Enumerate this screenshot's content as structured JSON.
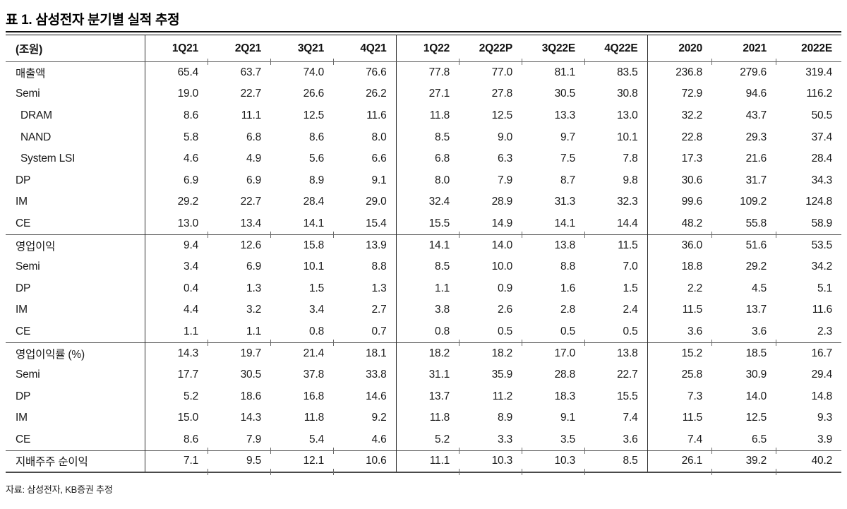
{
  "page_title": "표 1. 삼성전자 분기별 실적 추정",
  "style": {
    "text_color": "#1a1a1a",
    "rule_color": "#111111",
    "background": "#ffffff"
  },
  "table": {
    "unit_label": "(조원)",
    "columns": [
      "1Q21",
      "2Q21",
      "3Q21",
      "4Q21",
      "1Q22",
      "2Q22P",
      "3Q22E",
      "4Q22E",
      "2020",
      "2021",
      "2022E"
    ],
    "column_groups": [
      {
        "name": "quarters-2021",
        "span": 4
      },
      {
        "name": "quarters-2022",
        "span": 4
      },
      {
        "name": "annual",
        "span": 3
      }
    ],
    "rows": [
      {
        "label": "매출액",
        "indent": 0,
        "section_start": false,
        "values": [
          "65.4",
          "63.7",
          "74.0",
          "76.6",
          "77.8",
          "77.0",
          "81.1",
          "83.5",
          "236.8",
          "279.6",
          "319.4"
        ]
      },
      {
        "label": "Semi",
        "indent": 0,
        "section_start": false,
        "values": [
          "19.0",
          "22.7",
          "26.6",
          "26.2",
          "27.1",
          "27.8",
          "30.5",
          "30.8",
          "72.9",
          "94.6",
          "116.2"
        ]
      },
      {
        "label": "DRAM",
        "indent": 1,
        "section_start": false,
        "values": [
          "8.6",
          "11.1",
          "12.5",
          "11.6",
          "11.8",
          "12.5",
          "13.3",
          "13.0",
          "32.2",
          "43.7",
          "50.5"
        ]
      },
      {
        "label": "NAND",
        "indent": 1,
        "section_start": false,
        "values": [
          "5.8",
          "6.8",
          "8.6",
          "8.0",
          "8.5",
          "9.0",
          "9.7",
          "10.1",
          "22.8",
          "29.3",
          "37.4"
        ]
      },
      {
        "label": "System LSI",
        "indent": 1,
        "section_start": false,
        "values": [
          "4.6",
          "4.9",
          "5.6",
          "6.6",
          "6.8",
          "6.3",
          "7.5",
          "7.8",
          "17.3",
          "21.6",
          "28.4"
        ]
      },
      {
        "label": "DP",
        "indent": 0,
        "section_start": false,
        "values": [
          "6.9",
          "6.9",
          "8.9",
          "9.1",
          "8.0",
          "7.9",
          "8.7",
          "9.8",
          "30.6",
          "31.7",
          "34.3"
        ]
      },
      {
        "label": "IM",
        "indent": 0,
        "section_start": false,
        "values": [
          "29.2",
          "22.7",
          "28.4",
          "29.0",
          "32.4",
          "28.9",
          "31.3",
          "32.3",
          "99.6",
          "109.2",
          "124.8"
        ]
      },
      {
        "label": "CE",
        "indent": 0,
        "section_start": false,
        "values": [
          "13.0",
          "13.4",
          "14.1",
          "15.4",
          "15.5",
          "14.9",
          "14.1",
          "14.4",
          "48.2",
          "55.8",
          "58.9"
        ]
      },
      {
        "label": "영업이익",
        "indent": 0,
        "section_start": true,
        "values": [
          "9.4",
          "12.6",
          "15.8",
          "13.9",
          "14.1",
          "14.0",
          "13.8",
          "11.5",
          "36.0",
          "51.6",
          "53.5"
        ]
      },
      {
        "label": "Semi",
        "indent": 0,
        "section_start": false,
        "values": [
          "3.4",
          "6.9",
          "10.1",
          "8.8",
          "8.5",
          "10.0",
          "8.8",
          "7.0",
          "18.8",
          "29.2",
          "34.2"
        ]
      },
      {
        "label": "DP",
        "indent": 0,
        "section_start": false,
        "values": [
          "0.4",
          "1.3",
          "1.5",
          "1.3",
          "1.1",
          "0.9",
          "1.6",
          "1.5",
          "2.2",
          "4.5",
          "5.1"
        ]
      },
      {
        "label": "IM",
        "indent": 0,
        "section_start": false,
        "values": [
          "4.4",
          "3.2",
          "3.4",
          "2.7",
          "3.8",
          "2.6",
          "2.8",
          "2.4",
          "11.5",
          "13.7",
          "11.6"
        ]
      },
      {
        "label": "CE",
        "indent": 0,
        "section_start": false,
        "values": [
          "1.1",
          "1.1",
          "0.8",
          "0.7",
          "0.8",
          "0.5",
          "0.5",
          "0.5",
          "3.6",
          "3.6",
          "2.3"
        ]
      },
      {
        "label": "영업이익률 (%)",
        "indent": 0,
        "section_start": true,
        "values": [
          "14.3",
          "19.7",
          "21.4",
          "18.1",
          "18.2",
          "18.2",
          "17.0",
          "13.8",
          "15.2",
          "18.5",
          "16.7"
        ]
      },
      {
        "label": "Semi",
        "indent": 0,
        "section_start": false,
        "values": [
          "17.7",
          "30.5",
          "37.8",
          "33.8",
          "31.1",
          "35.9",
          "28.8",
          "22.7",
          "25.8",
          "30.9",
          "29.4"
        ]
      },
      {
        "label": "DP",
        "indent": 0,
        "section_start": false,
        "values": [
          "5.2",
          "18.6",
          "16.8",
          "14.6",
          "13.7",
          "11.2",
          "18.3",
          "15.5",
          "7.3",
          "14.0",
          "14.8"
        ]
      },
      {
        "label": "IM",
        "indent": 0,
        "section_start": false,
        "values": [
          "15.0",
          "14.3",
          "11.8",
          "9.2",
          "11.8",
          "8.9",
          "9.1",
          "7.4",
          "11.5",
          "12.5",
          "9.3"
        ]
      },
      {
        "label": "CE",
        "indent": 0,
        "section_start": false,
        "values": [
          "8.6",
          "7.9",
          "5.4",
          "4.6",
          "5.2",
          "3.3",
          "3.5",
          "3.6",
          "7.4",
          "6.5",
          "3.9"
        ]
      },
      {
        "label": "지배주주 순이익",
        "indent": 0,
        "section_start": true,
        "values": [
          "7.1",
          "9.5",
          "12.1",
          "10.6",
          "11.1",
          "10.3",
          "10.3",
          "8.5",
          "26.1",
          "39.2",
          "40.2"
        ]
      }
    ]
  },
  "footer": {
    "source_note": "자료: 삼성전자, KB증권 추정"
  }
}
